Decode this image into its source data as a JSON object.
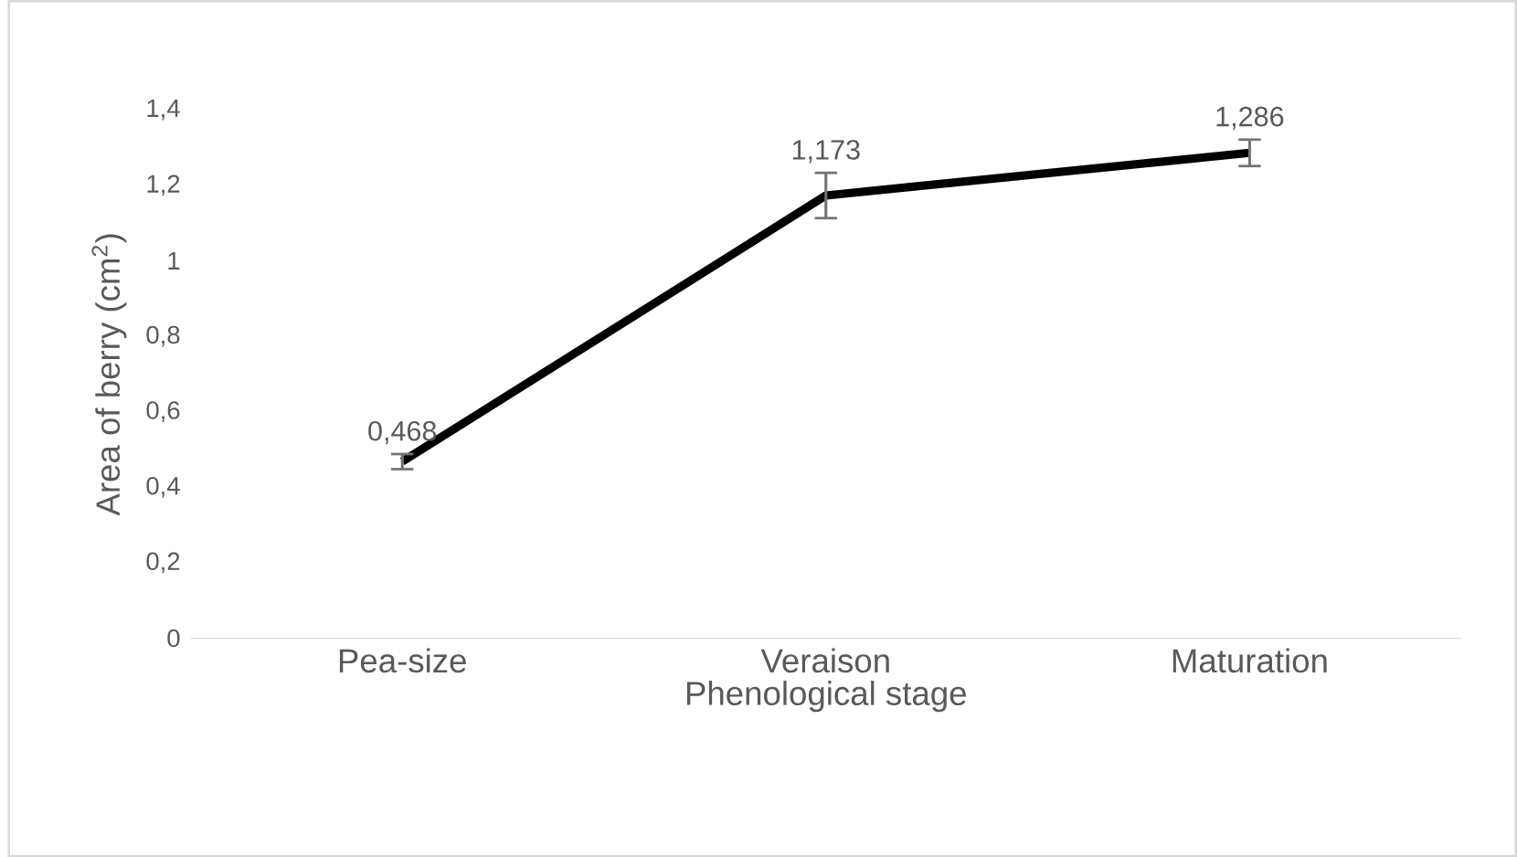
{
  "chart_data": {
    "type": "line",
    "xlabel": "Phenological stage",
    "ylabel": "Area of berry (cm$^{2}$)",
    "categories": [
      "Pea-size",
      "Veraison",
      "Maturation"
    ],
    "series": [
      {
        "color": "#000000",
        "values": [
          0.468,
          1.173,
          1.286
        ],
        "errors": [
          0.02,
          0.06,
          0.035
        ],
        "value_labels": [
          "0,468",
          "1,173",
          "1,286"
        ]
      }
    ],
    "ylim": [
      0,
      1.4
    ],
    "yticks": [
      {
        "value": 0,
        "label": "0"
      },
      {
        "value": 0.2,
        "label": "0,2"
      },
      {
        "value": 0.4,
        "label": "0,4"
      },
      {
        "value": 0.6,
        "label": "0,6"
      },
      {
        "value": 0.8,
        "label": "0,8"
      },
      {
        "value": 1,
        "label": "1"
      },
      {
        "value": 1.2,
        "label": "1,2"
      },
      {
        "value": 1.4,
        "label": "1,4"
      }
    ],
    "marker": "none",
    "line_style": "solid"
  }
}
